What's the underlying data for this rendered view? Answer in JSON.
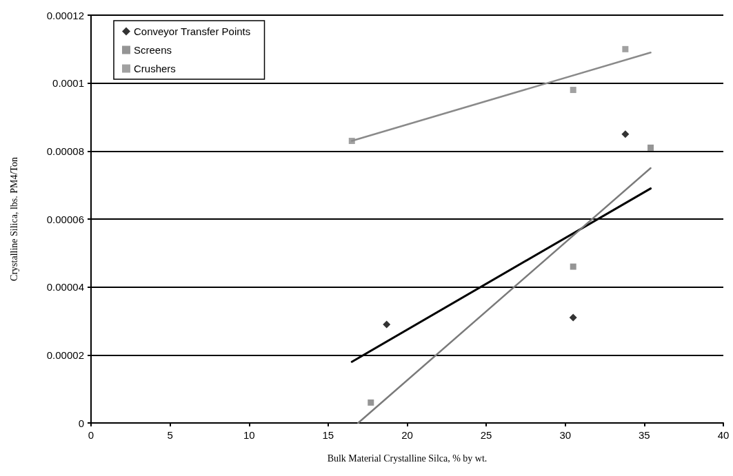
{
  "chart_data": {
    "type": "scatter",
    "xlabel": "Bulk Material Crystalline Silca, % by wt.",
    "ylabel": "Crystalline Silica, lbs. PM4/Ton",
    "xlim": [
      0,
      40
    ],
    "xticks": [
      0,
      5,
      10,
      15,
      20,
      25,
      30,
      35,
      40
    ],
    "ylim": [
      0,
      0.00012
    ],
    "yticks": [
      0,
      {
        "value": 2e-05,
        "label": "0.00002"
      },
      {
        "value": 4e-05,
        "label": "0.00004"
      },
      {
        "value": 6e-05,
        "label": "0.00006"
      },
      {
        "value": 8e-05,
        "label": "0.00008"
      },
      0.0001,
      0.00012
    ],
    "grid": "y",
    "legend": "top left",
    "series": [
      {
        "name": "Conveyor Transfer Points",
        "color": "#000000",
        "marker": "diamond",
        "x": [
          18.7,
          30.5,
          33.8
        ],
        "values": [
          2.9e-05,
          3.1e-05,
          8.5e-05
        ]
      },
      {
        "name": "Screens",
        "color": "#7a7a7a",
        "marker": "square",
        "x": [
          17.7,
          30.5,
          35.4
        ],
        "values": [
          6e-06,
          4.6e-05,
          8.1e-05
        ]
      },
      {
        "name": "Crushers",
        "color": "#8a8a8a",
        "marker": "square",
        "x": [
          16.5,
          30.5,
          33.8
        ],
        "values": [
          8.3e-05,
          9.8e-05,
          0.00011
        ]
      },
      {
        "type": "line",
        "color": "#000000",
        "marker": "none",
        "x": [
          16.5,
          35.4
        ],
        "values": [
          1.8e-05,
          6.9e-05
        ]
      },
      {
        "type": "line",
        "color": "#7a7a7a",
        "marker": "none",
        "x": [
          16.9,
          35.4
        ],
        "values": [
          0,
          7.5e-05
        ]
      },
      {
        "type": "line",
        "color": "#8a8a8a",
        "marker": "none",
        "x": [
          16.5,
          35.4
        ],
        "values": [
          8.3e-05,
          0.000109
        ]
      }
    ]
  }
}
